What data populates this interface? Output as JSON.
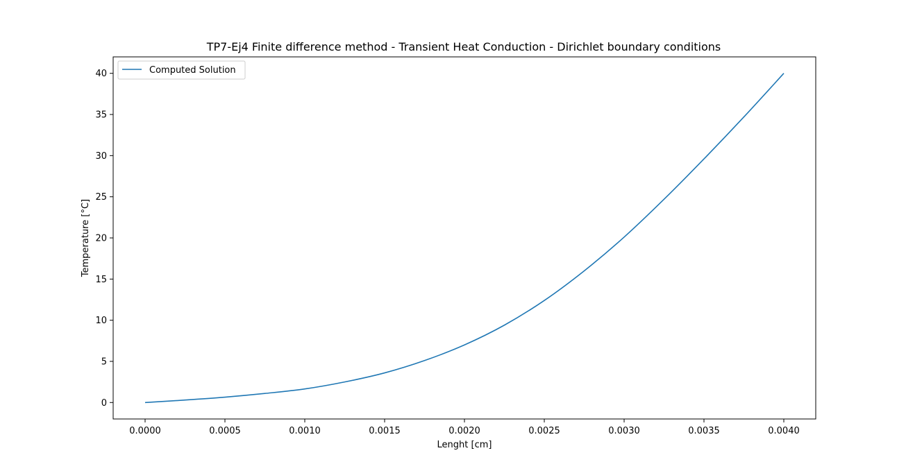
{
  "chart_data": {
    "type": "line",
    "title": "TP7-Ej4 Finite difference method - Transient Heat Conduction  - Dirichlet boundary conditions",
    "xlabel": "Lenght [cm]",
    "ylabel": "Temperature [°C]",
    "xlim": [
      -0.0002,
      0.0042
    ],
    "ylim": [
      -2.0,
      42.0
    ],
    "xticks": [
      0.0,
      0.0005,
      0.001,
      0.0015,
      0.002,
      0.0025,
      0.003,
      0.0035,
      0.004
    ],
    "xtick_labels": [
      "0.0000",
      "0.0005",
      "0.0010",
      "0.0015",
      "0.0020",
      "0.0025",
      "0.0030",
      "0.0035",
      "0.0040"
    ],
    "yticks": [
      0,
      5,
      10,
      15,
      20,
      25,
      30,
      35,
      40
    ],
    "ytick_labels": [
      "0",
      "5",
      "10",
      "15",
      "20",
      "25",
      "30",
      "35",
      "40"
    ],
    "grid": false,
    "legend_position": "top-left",
    "series": [
      {
        "name": "Computed Solution",
        "color": "#1f77b4",
        "x": [
          0.0,
          0.00025,
          0.0005,
          0.00075,
          0.001,
          0.00125,
          0.0015,
          0.00175,
          0.002,
          0.00225,
          0.0025,
          0.00275,
          0.003,
          0.00325,
          0.0035,
          0.00375,
          0.004
        ],
        "y": [
          0.0,
          0.3,
          0.65,
          1.1,
          1.65,
          2.5,
          3.6,
          5.1,
          7.0,
          9.4,
          12.4,
          16.0,
          20.1,
          24.7,
          29.6,
          34.7,
          40.0
        ]
      }
    ]
  }
}
